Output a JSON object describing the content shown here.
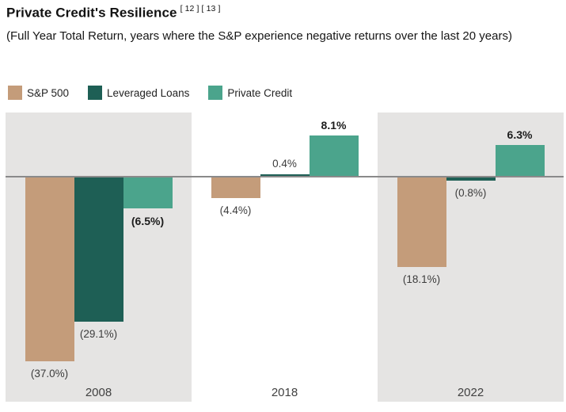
{
  "title": {
    "text": "Private Credit's Resilience",
    "citations": "[ 12 ] [ 13 ]"
  },
  "subtitle": "(Full Year Total Return, years where the S&P experience negative returns over the last 20 years)",
  "legend": [
    {
      "label": "S&P 500",
      "color": "#C49C7A",
      "icon": "swatch-square"
    },
    {
      "label": "Leveraged Loans",
      "color": "#1E5F55",
      "icon": "swatch-square"
    },
    {
      "label": "Private Credit",
      "color": "#4BA48C",
      "icon": "swatch-square"
    }
  ],
  "chart_data": {
    "type": "bar",
    "categories": [
      "2008",
      "2018",
      "2022"
    ],
    "series": [
      {
        "name": "S&P 500",
        "color": "#C49C7A",
        "values": [
          -37.0,
          -4.4,
          -18.1
        ],
        "labels": [
          "(37.0%)",
          "(4.4%)",
          "(18.1%)"
        ],
        "bold_labels": false
      },
      {
        "name": "Leveraged Loans",
        "color": "#1E5F55",
        "values": [
          -29.1,
          0.4,
          -0.8
        ],
        "labels": [
          "(29.1%)",
          "0.4%",
          "(0.8%)"
        ],
        "bold_labels": false
      },
      {
        "name": "Private Credit",
        "color": "#4BA48C",
        "values": [
          -6.5,
          8.1,
          6.3
        ],
        "labels": [
          "(6.5%)",
          "8.1%",
          "6.3%"
        ],
        "bold_labels": true
      }
    ],
    "xlabel": "",
    "ylabel": "",
    "value_format": "negatives shown in parentheses, one decimal, percent",
    "axis": {
      "zero_line": true,
      "gridlines": false,
      "y_ticks_shown": false
    },
    "band_colors": [
      "#E5E4E3",
      "#FFFFFF",
      "#E5E4E3"
    ],
    "zero_line_color": "#8A8A8A",
    "legend_position": "top-left"
  }
}
